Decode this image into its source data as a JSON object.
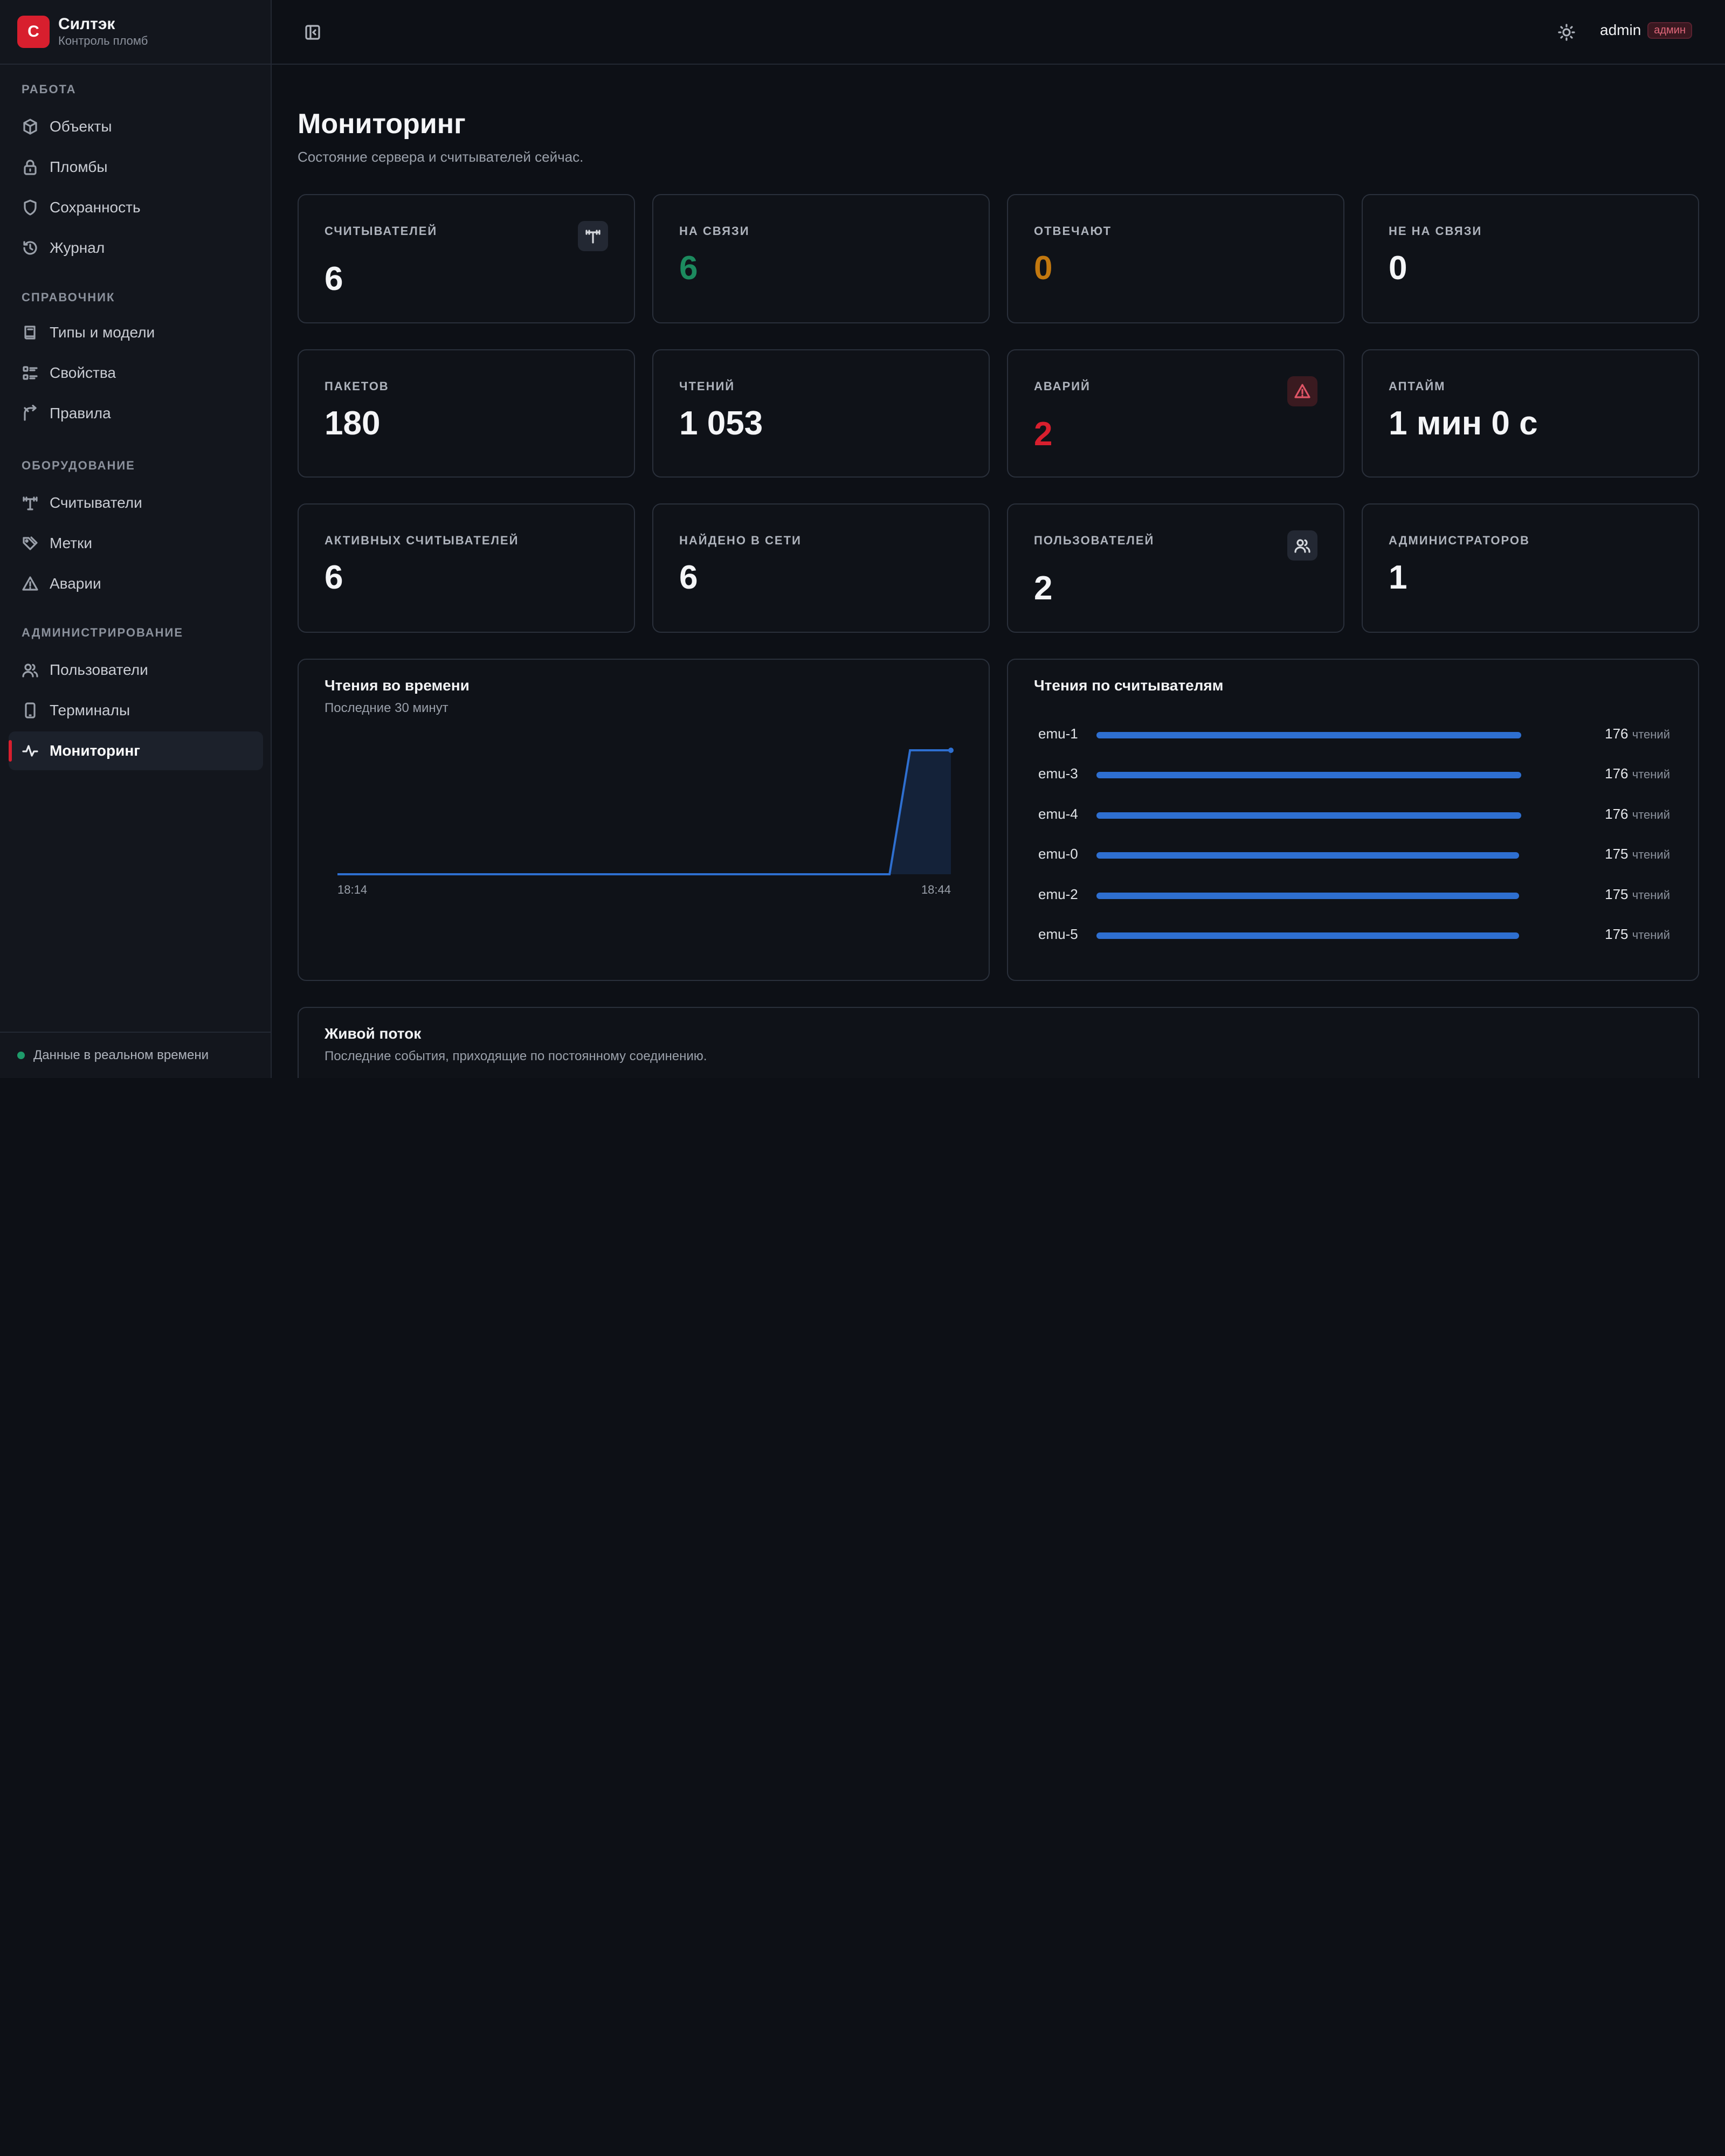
{
  "brand": {
    "name": "Силтэк",
    "subtitle": "Контроль пломб",
    "logo_letter": "С",
    "accent": "#d81f2e"
  },
  "sidebar": {
    "sections": [
      {
        "header": "РАБОТА",
        "items": [
          {
            "label": "Объекты",
            "icon": "box-icon"
          },
          {
            "label": "Пломбы",
            "icon": "lock-icon"
          },
          {
            "label": "Сохранность",
            "icon": "shield-icon"
          },
          {
            "label": "Журнал",
            "icon": "history-icon"
          }
        ]
      },
      {
        "header": "СПРАВОЧНИК",
        "items": [
          {
            "label": "Типы и модели",
            "icon": "book-icon"
          },
          {
            "label": "Свойства",
            "icon": "list-icon"
          },
          {
            "label": "Правила",
            "icon": "route-icon"
          }
        ]
      },
      {
        "header": "ОБОРУДОВАНИЕ",
        "items": [
          {
            "label": "Считыватели",
            "icon": "antenna-icon"
          },
          {
            "label": "Метки",
            "icon": "tags-icon"
          },
          {
            "label": "Аварии",
            "icon": "alert-triangle-icon"
          }
        ]
      },
      {
        "header": "АДМИНИСТРИРОВАНИЕ",
        "items": [
          {
            "label": "Пользователи",
            "icon": "users-icon"
          },
          {
            "label": "Терминалы",
            "icon": "tablet-icon"
          },
          {
            "label": "Мониторинг",
            "icon": "activity-icon",
            "active": true
          }
        ]
      }
    ],
    "footer": "Данные в реальном времени"
  },
  "topbar": {
    "user": "admin",
    "role": "админ"
  },
  "page": {
    "title": "Мониторинг",
    "subtitle": "Состояние сервера и считывателей сейчас."
  },
  "stats": [
    {
      "label": "СЧИТЫВАТЕЛЕЙ",
      "value": "6",
      "icon": "antenna-icon"
    },
    {
      "label": "НА СВЯЗИ",
      "value": "6",
      "tone": "green"
    },
    {
      "label": "ОТВЕЧАЮТ",
      "value": "0",
      "tone": "amber"
    },
    {
      "label": "НЕ НА СВЯЗИ",
      "value": "0"
    },
    {
      "label": "ПАКЕТОВ",
      "value": "180"
    },
    {
      "label": "ЧТЕНИЙ",
      "value": "1 053"
    },
    {
      "label": "АВАРИЙ",
      "value": "2",
      "tone": "red",
      "icon": "alert-triangle-icon"
    },
    {
      "label": "АПТАЙМ",
      "value": "1 мин 0 с"
    },
    {
      "label": "АКТИВНЫХ СЧИТЫВАТЕЛЕЙ",
      "value": "6"
    },
    {
      "label": "НАЙДЕНО В СЕТИ",
      "value": "6"
    },
    {
      "label": "ПОЛЬЗОВАТЕЛЕЙ",
      "value": "2",
      "icon": "users-icon"
    },
    {
      "label": "АДМИНИСТРАТОРОВ",
      "value": "1"
    }
  ],
  "reads_over_time": {
    "title": "Чтения во времени",
    "subtitle": "Последние 30 минут",
    "chart_data": {
      "type": "area",
      "x": [
        "18:14",
        "18:15",
        "18:16",
        "18:17",
        "18:18",
        "18:19",
        "18:20",
        "18:21",
        "18:22",
        "18:23",
        "18:24",
        "18:25",
        "18:26",
        "18:27",
        "18:28",
        "18:29",
        "18:30",
        "18:31",
        "18:32",
        "18:33",
        "18:34",
        "18:35",
        "18:36",
        "18:37",
        "18:38",
        "18:39",
        "18:40",
        "18:41",
        "18:42",
        "18:43",
        "18:44"
      ],
      "values": [
        0,
        0,
        0,
        0,
        0,
        0,
        0,
        0,
        0,
        0,
        0,
        0,
        0,
        0,
        0,
        0,
        0,
        0,
        0,
        0,
        0,
        0,
        0,
        0,
        0,
        0,
        0,
        0,
        1,
        1,
        1
      ],
      "x_tick_labels": [
        "18:14",
        "18:44"
      ],
      "color": "#2e6fd0"
    }
  },
  "reads_by_reader": {
    "title": "Чтения по считывателям",
    "unit": "чтений",
    "chart_data": {
      "type": "bar",
      "categories": [
        "emu-1",
        "emu-3",
        "emu-4",
        "emu-0",
        "emu-2",
        "emu-5"
      ],
      "values": [
        176,
        176,
        176,
        175,
        175,
        175
      ],
      "color": "#2e6fd0"
    }
  },
  "live_stream": {
    "title": "Живой поток",
    "subtitle": "Последние события, приходящие по постоянному соединению."
  }
}
